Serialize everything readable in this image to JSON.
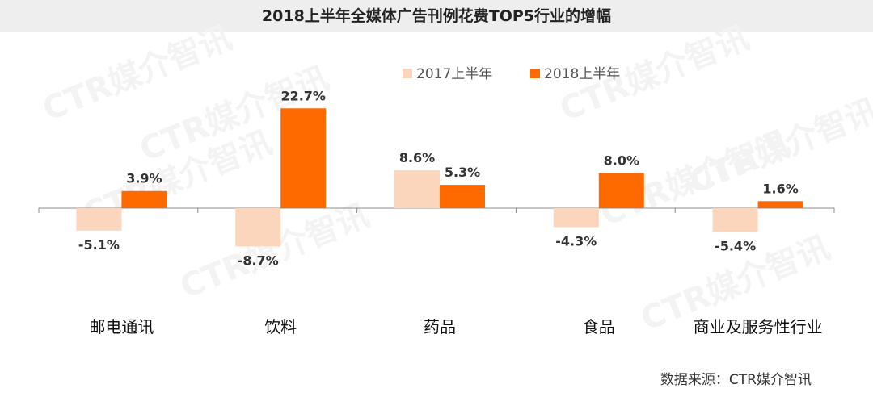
{
  "chart_data": {
    "type": "bar",
    "title": "2018上半年全媒体广告刊例花费TOP5行业的增幅",
    "categories": [
      "邮电通讯",
      "饮料",
      "药品",
      "食品",
      "商业及服务性行业"
    ],
    "series": [
      {
        "name": "2017上半年",
        "color": "#fcd5bd",
        "values": [
          -5.1,
          -8.7,
          8.6,
          -4.3,
          -5.4
        ],
        "labels": [
          "-5.1%",
          "-8.7%",
          "8.6%",
          "-4.3%",
          "-5.4%"
        ]
      },
      {
        "name": "2018上半年",
        "color": "#ff6a00",
        "values": [
          3.9,
          22.7,
          5.3,
          8.0,
          1.6
        ],
        "labels": [
          "3.9%",
          "22.7%",
          "5.3%",
          "8.0%",
          "1.6%"
        ]
      }
    ],
    "unit": "%",
    "legend_position": "top-center",
    "grid": false
  },
  "source": "数据来源：CTR媒介智讯",
  "watermark": "CTR媒介智讯"
}
